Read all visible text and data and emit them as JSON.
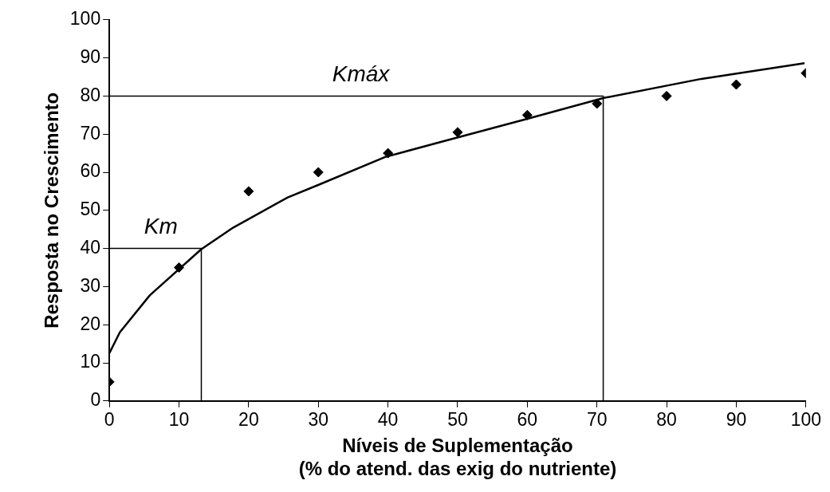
{
  "chart_data": {
    "type": "scatter",
    "xlabel": "Níveis de Suplementação\n(% do atend. das exig do nutriente)",
    "ylabel": "Resposta no Crescimento",
    "xlim": [
      0,
      100
    ],
    "xticks": [
      0,
      10,
      20,
      30,
      40,
      50,
      60,
      70,
      80,
      90,
      100
    ],
    "ylim": [
      0,
      100
    ],
    "yticks": [
      0,
      10,
      20,
      30,
      40,
      50,
      60,
      70,
      80,
      90,
      100
    ],
    "grid": false,
    "legend": false,
    "marker": "diamond",
    "series": [
      {
        "color": "#000000",
        "x": [
          0,
          10,
          20,
          30,
          40,
          50,
          60,
          70,
          80,
          90,
          100
        ],
        "values": [
          5,
          35,
          55,
          60,
          65,
          70.5,
          75,
          78,
          80,
          83,
          86
        ]
      },
      {
        "type": "line",
        "color": "#000000",
        "marker": "none",
        "x": [
          0,
          1.5,
          5.8,
          13.2,
          17.8,
          25.6,
          29.9,
          39.6,
          47.7,
          60,
          71,
          85,
          99.8
        ],
        "values": [
          12.5,
          18,
          27.7,
          39.8,
          45.5,
          53.4,
          56.6,
          64,
          68,
          74,
          79.5,
          84.5,
          88.6
        ]
      },
      {
        "type": "line",
        "color": "#000000",
        "marker": "none",
        "x": [
          0,
          13.2,
          13.2
        ],
        "values": [
          40,
          40,
          0
        ]
      },
      {
        "type": "line",
        "color": "#000000",
        "marker": "none",
        "x": [
          0,
          70.9,
          70.9
        ],
        "values": [
          80,
          80,
          0
        ]
      }
    ],
    "annotations": [
      {
        "text": "Km",
        "x": 5,
        "y": 40
      },
      {
        "text": "Kmáx",
        "x": 32,
        "y": 80
      }
    ]
  }
}
